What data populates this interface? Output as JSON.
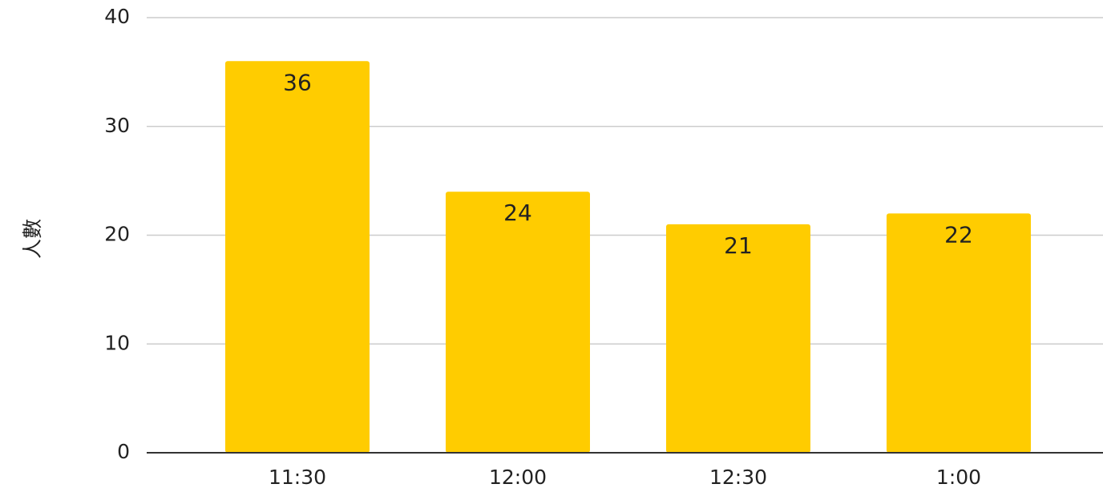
{
  "chart_data": {
    "type": "bar",
    "title": "",
    "xlabel": "",
    "ylabel": "人數",
    "categories": [
      "11:30",
      "12:00",
      "12:30",
      "1:00"
    ],
    "values": [
      36,
      24,
      21,
      22
    ],
    "data_labels": [
      "36",
      "24",
      "21",
      "22"
    ],
    "ylim": [
      0,
      40
    ],
    "yticks": [
      0,
      10,
      20,
      30,
      40
    ],
    "grid": true,
    "legend": "none",
    "bar_color": "#ffcc00"
  }
}
